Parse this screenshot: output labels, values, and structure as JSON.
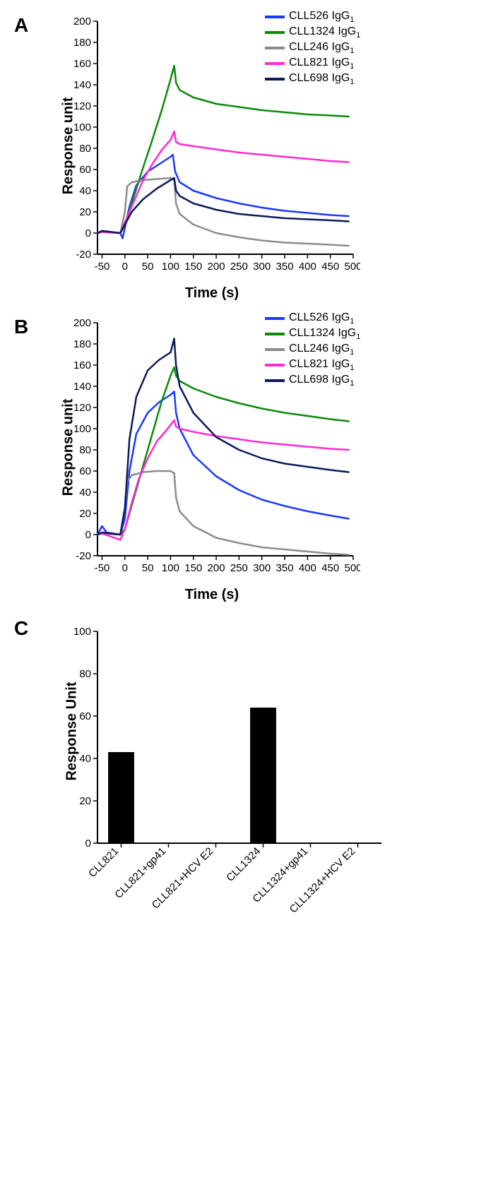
{
  "panels": {
    "A": {
      "label": "A",
      "type": "line",
      "x_axis": {
        "title": "Time (s)",
        "min": -60,
        "max": 500,
        "ticks": [
          -50,
          0,
          50,
          100,
          150,
          200,
          250,
          300,
          350,
          400,
          450,
          500
        ]
      },
      "y_axis": {
        "title": "Response unit",
        "min": -20,
        "max": 200,
        "ticks": [
          -20,
          0,
          20,
          40,
          60,
          80,
          100,
          120,
          140,
          160,
          180,
          200
        ]
      },
      "title_fontsize": 20,
      "tick_fontsize": 15,
      "line_width": 2.5,
      "background_color": "#ffffff",
      "axis_color": "#000000",
      "series": [
        {
          "name": "CLL526 IgG1",
          "label": "CLL526 IgG",
          "sub": "1",
          "color": "#1a39ff",
          "points": [
            [
              -60,
              0
            ],
            [
              -50,
              2
            ],
            [
              -10,
              0
            ],
            [
              -5,
              -5
            ],
            [
              0,
              5
            ],
            [
              10,
              25
            ],
            [
              25,
              45
            ],
            [
              50,
              58
            ],
            [
              75,
              65
            ],
            [
              100,
              72
            ],
            [
              105,
              74
            ],
            [
              110,
              58
            ],
            [
              120,
              48
            ],
            [
              150,
              40
            ],
            [
              200,
              33
            ],
            [
              250,
              28
            ],
            [
              300,
              24
            ],
            [
              350,
              21
            ],
            [
              400,
              19
            ],
            [
              450,
              17
            ],
            [
              490,
              16
            ]
          ]
        },
        {
          "name": "CLL1324 IgG1",
          "label": "CLL1324 IgG",
          "sub": "1",
          "color": "#0a8a0a",
          "points": [
            [
              -60,
              0
            ],
            [
              -50,
              1
            ],
            [
              -10,
              0
            ],
            [
              0,
              8
            ],
            [
              20,
              35
            ],
            [
              40,
              62
            ],
            [
              60,
              88
            ],
            [
              80,
              115
            ],
            [
              100,
              145
            ],
            [
              108,
              158
            ],
            [
              112,
              142
            ],
            [
              120,
              135
            ],
            [
              150,
              128
            ],
            [
              200,
              122
            ],
            [
              250,
              119
            ],
            [
              300,
              116
            ],
            [
              350,
              114
            ],
            [
              400,
              112
            ],
            [
              450,
              111
            ],
            [
              490,
              110
            ]
          ]
        },
        {
          "name": "CLL246 IgG1",
          "label": "CLL246 IgG",
          "sub": "1",
          "color": "#8c8c8c",
          "points": [
            [
              -60,
              0
            ],
            [
              -50,
              1
            ],
            [
              -10,
              0
            ],
            [
              0,
              20
            ],
            [
              5,
              44
            ],
            [
              15,
              48
            ],
            [
              40,
              50
            ],
            [
              70,
              51
            ],
            [
              100,
              52
            ],
            [
              108,
              50
            ],
            [
              112,
              28
            ],
            [
              120,
              18
            ],
            [
              150,
              8
            ],
            [
              200,
              0
            ],
            [
              250,
              -4
            ],
            [
              300,
              -7
            ],
            [
              350,
              -9
            ],
            [
              400,
              -10
            ],
            [
              450,
              -11
            ],
            [
              490,
              -12
            ]
          ]
        },
        {
          "name": "CLL821 IgG1",
          "label": "CLL821 IgG",
          "sub": "1",
          "color": "#ff2ad4",
          "points": [
            [
              -60,
              0
            ],
            [
              -50,
              1
            ],
            [
              -10,
              0
            ],
            [
              0,
              10
            ],
            [
              20,
              30
            ],
            [
              40,
              50
            ],
            [
              60,
              65
            ],
            [
              80,
              78
            ],
            [
              100,
              88
            ],
            [
              108,
              96
            ],
            [
              112,
              86
            ],
            [
              120,
              84
            ],
            [
              150,
              82
            ],
            [
              200,
              79
            ],
            [
              250,
              76
            ],
            [
              300,
              74
            ],
            [
              350,
              72
            ],
            [
              400,
              70
            ],
            [
              450,
              68
            ],
            [
              490,
              67
            ]
          ]
        },
        {
          "name": "CLL698 IgG1",
          "label": "CLL698 IgG",
          "sub": "1",
          "color": "#0a1a5a",
          "points": [
            [
              -60,
              0
            ],
            [
              -50,
              2
            ],
            [
              -10,
              0
            ],
            [
              0,
              8
            ],
            [
              15,
              20
            ],
            [
              40,
              32
            ],
            [
              70,
              42
            ],
            [
              100,
              50
            ],
            [
              108,
              52
            ],
            [
              112,
              40
            ],
            [
              120,
              35
            ],
            [
              150,
              28
            ],
            [
              200,
              22
            ],
            [
              250,
              18
            ],
            [
              300,
              16
            ],
            [
              350,
              14
            ],
            [
              400,
              13
            ],
            [
              450,
              12
            ],
            [
              490,
              11
            ]
          ]
        }
      ]
    },
    "B": {
      "label": "B",
      "type": "line",
      "x_axis": {
        "title": "Time (s)",
        "min": -60,
        "max": 500,
        "ticks": [
          -50,
          0,
          50,
          100,
          150,
          200,
          250,
          300,
          350,
          400,
          450,
          500
        ]
      },
      "y_axis": {
        "title": "Response unit",
        "min": -20,
        "max": 200,
        "ticks": [
          -20,
          0,
          20,
          40,
          60,
          80,
          100,
          120,
          140,
          160,
          180,
          200
        ]
      },
      "title_fontsize": 20,
      "tick_fontsize": 15,
      "line_width": 2.5,
      "background_color": "#ffffff",
      "axis_color": "#000000",
      "series": [
        {
          "name": "CLL526 IgG1",
          "label": "CLL526 IgG",
          "sub": "1",
          "color": "#1a39ff",
          "points": [
            [
              -60,
              0
            ],
            [
              -50,
              8
            ],
            [
              -40,
              2
            ],
            [
              -10,
              0
            ],
            [
              0,
              15
            ],
            [
              10,
              60
            ],
            [
              25,
              95
            ],
            [
              50,
              115
            ],
            [
              75,
              125
            ],
            [
              100,
              132
            ],
            [
              108,
              135
            ],
            [
              112,
              115
            ],
            [
              120,
              100
            ],
            [
              150,
              75
            ],
            [
              200,
              55
            ],
            [
              250,
              42
            ],
            [
              300,
              33
            ],
            [
              350,
              27
            ],
            [
              400,
              22
            ],
            [
              450,
              18
            ],
            [
              490,
              15
            ]
          ]
        },
        {
          "name": "CLL1324 IgG1",
          "label": "CLL1324 IgG",
          "sub": "1",
          "color": "#0a8a0a",
          "points": [
            [
              -60,
              0
            ],
            [
              -50,
              1
            ],
            [
              -10,
              0
            ],
            [
              0,
              5
            ],
            [
              20,
              35
            ],
            [
              40,
              65
            ],
            [
              60,
              95
            ],
            [
              80,
              125
            ],
            [
              100,
              150
            ],
            [
              108,
              158
            ],
            [
              112,
              150
            ],
            [
              120,
              145
            ],
            [
              150,
              138
            ],
            [
              200,
              130
            ],
            [
              250,
              124
            ],
            [
              300,
              119
            ],
            [
              350,
              115
            ],
            [
              400,
              112
            ],
            [
              450,
              109
            ],
            [
              490,
              107
            ]
          ]
        },
        {
          "name": "CLL246 IgG1",
          "label": "CLL246 IgG",
          "sub": "1",
          "color": "#8c8c8c",
          "points": [
            [
              -60,
              0
            ],
            [
              -50,
              1
            ],
            [
              -10,
              0
            ],
            [
              0,
              25
            ],
            [
              5,
              50
            ],
            [
              15,
              56
            ],
            [
              40,
              59
            ],
            [
              70,
              60
            ],
            [
              100,
              60
            ],
            [
              108,
              58
            ],
            [
              112,
              35
            ],
            [
              120,
              22
            ],
            [
              150,
              8
            ],
            [
              200,
              -3
            ],
            [
              250,
              -8
            ],
            [
              300,
              -12
            ],
            [
              350,
              -14
            ],
            [
              400,
              -16
            ],
            [
              450,
              -18
            ],
            [
              490,
              -19
            ]
          ]
        },
        {
          "name": "CLL821 IgG1",
          "label": "CLL821 IgG",
          "sub": "1",
          "color": "#ff2ad4",
          "points": [
            [
              -60,
              0
            ],
            [
              -50,
              1
            ],
            [
              -10,
              -5
            ],
            [
              0,
              5
            ],
            [
              15,
              30
            ],
            [
              30,
              52
            ],
            [
              50,
              72
            ],
            [
              70,
              88
            ],
            [
              90,
              98
            ],
            [
              108,
              108
            ],
            [
              112,
              102
            ],
            [
              120,
              100
            ],
            [
              150,
              97
            ],
            [
              200,
              93
            ],
            [
              250,
              90
            ],
            [
              300,
              87
            ],
            [
              350,
              85
            ],
            [
              400,
              83
            ],
            [
              450,
              81
            ],
            [
              490,
              80
            ]
          ]
        },
        {
          "name": "CLL698 IgG1",
          "label": "CLL698 IgG",
          "sub": "1",
          "color": "#0a1a5a",
          "points": [
            [
              -60,
              0
            ],
            [
              -50,
              2
            ],
            [
              -10,
              0
            ],
            [
              0,
              25
            ],
            [
              10,
              90
            ],
            [
              25,
              130
            ],
            [
              50,
              155
            ],
            [
              75,
              165
            ],
            [
              100,
              172
            ],
            [
              108,
              185
            ],
            [
              112,
              160
            ],
            [
              120,
              140
            ],
            [
              150,
              115
            ],
            [
              200,
              92
            ],
            [
              250,
              80
            ],
            [
              300,
              72
            ],
            [
              350,
              67
            ],
            [
              400,
              64
            ],
            [
              450,
              61
            ],
            [
              490,
              59
            ]
          ]
        }
      ]
    },
    "C": {
      "label": "C",
      "type": "bar",
      "x_axis": {
        "title": ""
      },
      "y_axis": {
        "title": "Response Unit",
        "min": 0,
        "max": 100,
        "ticks": [
          0,
          20,
          40,
          60,
          80,
          100
        ]
      },
      "title_fontsize": 20,
      "tick_fontsize": 15,
      "bar_color": "#000000",
      "background_color": "#ffffff",
      "axis_color": "#000000",
      "bar_width": 0.55,
      "categories": [
        "CLL821",
        "CLL821+gp41",
        "CLL821+HCV E2",
        "CLL1324",
        "CLL1324+gp41",
        "CLL1324+HCV E2"
      ],
      "values": [
        43,
        0,
        0,
        64,
        0,
        0
      ]
    }
  }
}
